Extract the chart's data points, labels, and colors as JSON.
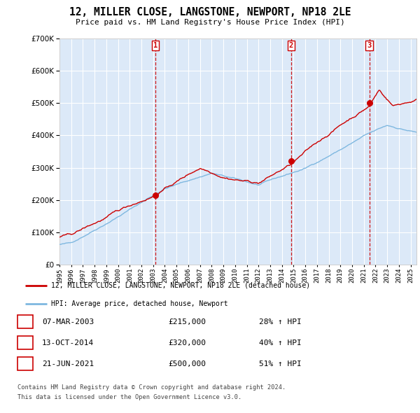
{
  "title": "12, MILLER CLOSE, LANGSTONE, NEWPORT, NP18 2LE",
  "subtitle": "Price paid vs. HM Land Registry's House Price Index (HPI)",
  "ytick_values": [
    0,
    100000,
    200000,
    300000,
    400000,
    500000,
    600000,
    700000
  ],
  "ylim": [
    0,
    700000
  ],
  "sale_dates_num": [
    2003.19,
    2014.79,
    2021.47
  ],
  "sale_prices": [
    215000,
    320000,
    500000
  ],
  "sale_labels": [
    "1",
    "2",
    "3"
  ],
  "legend_red": "12, MILLER CLOSE, LANGSTONE, NEWPORT, NP18 2LE (detached house)",
  "legend_blue": "HPI: Average price, detached house, Newport",
  "table_rows": [
    [
      "1",
      "07-MAR-2003",
      "£215,000",
      "28% ↑ HPI"
    ],
    [
      "2",
      "13-OCT-2014",
      "£320,000",
      "40% ↑ HPI"
    ],
    [
      "3",
      "21-JUN-2021",
      "£500,000",
      "51% ↑ HPI"
    ]
  ],
  "footnote1": "Contains HM Land Registry data © Crown copyright and database right 2024.",
  "footnote2": "This data is licensed under the Open Government Licence v3.0.",
  "plot_bg": "#dce9f8",
  "grid_color": "#ffffff",
  "red_color": "#cc0000",
  "blue_color": "#7fb8e0",
  "xmin_year": 1995,
  "xmax_year": 2025.5,
  "xtick_years": [
    1995,
    1996,
    1997,
    1998,
    1999,
    2000,
    2001,
    2002,
    2003,
    2004,
    2005,
    2006,
    2007,
    2008,
    2009,
    2010,
    2011,
    2012,
    2013,
    2014,
    2015,
    2016,
    2017,
    2018,
    2019,
    2020,
    2021,
    2022,
    2023,
    2024,
    2025
  ]
}
